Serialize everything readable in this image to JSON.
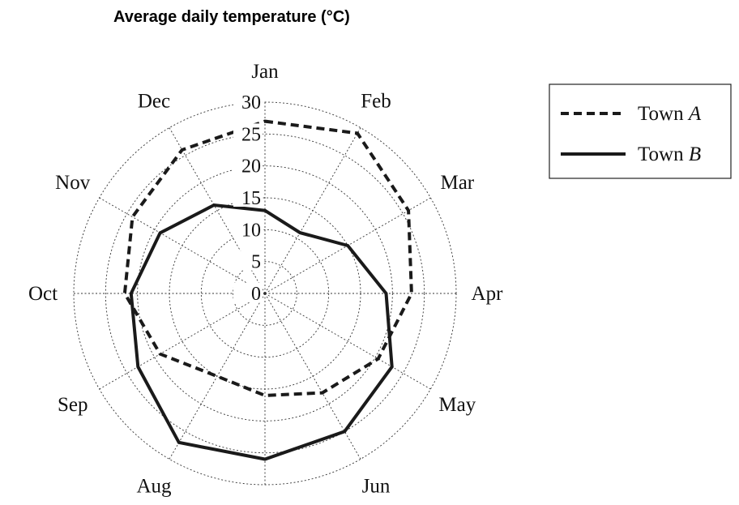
{
  "chart_data": {
    "type": "radar",
    "title": "Average daily temperature (°C)",
    "categories": [
      "Jan",
      "Feb",
      "Mar",
      "Apr",
      "May",
      "Jun",
      "",
      "Aug",
      "Sep",
      "Oct",
      "Nov",
      "Dec"
    ],
    "radial_ticks": [
      "0",
      "5",
      "10",
      "15",
      "20",
      "25",
      "30"
    ],
    "rlim": [
      0,
      30
    ],
    "grid": true,
    "legend_position": "right",
    "series": [
      {
        "name": "Town A",
        "name_prefix": "Town ",
        "name_italic": "A",
        "style": "dashed",
        "color": "#1a1a1a",
        "values": [
          27,
          29,
          26,
          23,
          20.5,
          18,
          16,
          15,
          19,
          22,
          24,
          26
        ]
      },
      {
        "name": "Town B",
        "name_prefix": "Town ",
        "name_italic": "B",
        "style": "solid",
        "color": "#1a1a1a",
        "values": [
          13,
          11,
          15,
          19,
          23,
          25,
          26,
          27,
          23,
          21,
          19,
          16
        ]
      }
    ]
  }
}
